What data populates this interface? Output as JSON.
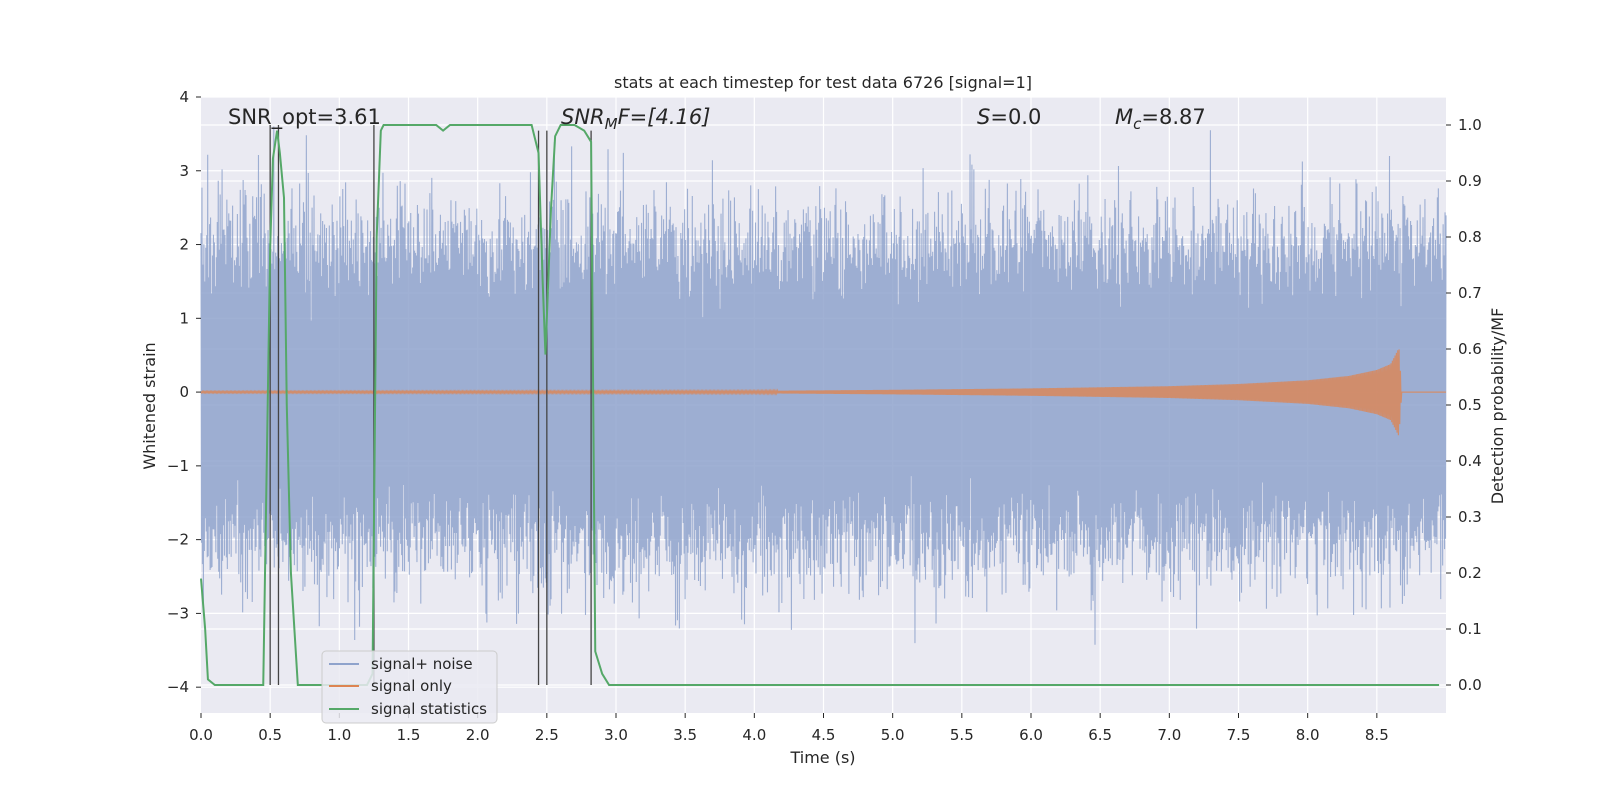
{
  "chart_data": {
    "type": "line",
    "title": "stats at each timestep for test data 6726 [signal=1]",
    "xlabel": "Time (s)",
    "ylabel": "Whitened strain",
    "y2label": "Detection probability/MF",
    "xlim": [
      0.0,
      9.0
    ],
    "ylim": [
      -4.35,
      4.0
    ],
    "y2lim": [
      -0.05,
      1.05
    ],
    "xticks": [
      0.0,
      0.5,
      1.0,
      1.5,
      2.0,
      2.5,
      3.0,
      3.5,
      4.0,
      4.5,
      5.0,
      5.5,
      6.0,
      6.5,
      7.0,
      7.5,
      8.0,
      8.5
    ],
    "xtick_labels": [
      "0.0",
      "0.5",
      "1.0",
      "1.5",
      "2.0",
      "2.5",
      "3.0",
      "3.5",
      "4.0",
      "4.5",
      "5.0",
      "5.5",
      "6.0",
      "6.5",
      "7.0",
      "7.5",
      "8.0",
      "8.5"
    ],
    "yticks": [
      4,
      3,
      2,
      1,
      0,
      -1,
      -2,
      -3,
      -4
    ],
    "ytick_labels": [
      "4",
      "3",
      "2",
      "1",
      "0",
      "−1",
      "−2",
      "−3",
      "−4"
    ],
    "y2ticks": [
      1.0,
      0.9,
      0.8,
      0.7,
      0.6,
      0.5,
      0.4,
      0.3,
      0.2,
      0.1,
      0.0
    ],
    "y2tick_labels": [
      "1.0",
      "0.9",
      "0.8",
      "0.7",
      "0.6",
      "0.5",
      "0.4",
      "0.3",
      "0.2",
      "0.1",
      "0.0"
    ],
    "grid": true,
    "legend_position": "bottom-left",
    "annotations": {
      "snr_opt": "SNR_opt=3.61",
      "snr_mf_name": "SNR",
      "snr_mf_sub": "M",
      "snr_mf_rest": "F=[4.16]",
      "s_name": "S",
      "s_rest": "=0.0",
      "mc_name": "M",
      "mc_sub": "c",
      "mc_rest": "=8.87"
    },
    "series": [
      {
        "name": "signal+ noise",
        "color": "#8fa3cc",
        "axis": "left",
        "duration": 9.0,
        "typical_amplitude": 1.9,
        "peak_amplitude": 3.6
      },
      {
        "name": "signal only",
        "color": "#dd8452",
        "axis": "left",
        "duration": 8.68,
        "envelope_t": [
          0.0,
          4.0,
          5.0,
          6.0,
          7.0,
          7.5,
          8.0,
          8.3,
          8.5,
          8.6,
          8.66,
          8.68
        ],
        "envelope_a": [
          0.01,
          0.015,
          0.03,
          0.05,
          0.08,
          0.11,
          0.16,
          0.22,
          0.3,
          0.38,
          0.6,
          0.0
        ]
      },
      {
        "name": "signal statistics",
        "color": "#55a868",
        "axis": "right",
        "x": [
          0.0,
          0.03,
          0.05,
          0.1,
          0.15,
          0.2,
          0.3,
          0.4,
          0.45,
          0.5,
          0.52,
          0.55,
          0.57,
          0.6,
          0.62,
          0.65,
          0.7,
          0.8,
          1.0,
          1.2,
          1.24,
          1.27,
          1.3,
          1.32,
          1.5,
          1.7,
          1.75,
          1.8,
          2.0,
          2.2,
          2.39,
          2.44,
          2.47,
          2.49,
          2.53,
          2.56,
          2.6,
          2.7,
          2.77,
          2.82,
          2.85,
          2.9,
          2.95,
          3.0,
          4.0,
          6.0,
          8.0,
          8.95
        ],
        "y": [
          0.19,
          0.1,
          0.01,
          0.0,
          0.0,
          0.0,
          0.0,
          0.0,
          0.0,
          0.78,
          0.94,
          0.99,
          0.95,
          0.87,
          0.5,
          0.2,
          0.0,
          0.0,
          0.0,
          0.0,
          0.02,
          0.8,
          0.99,
          1.0,
          1.0,
          1.0,
          0.99,
          1.0,
          1.0,
          1.0,
          1.0,
          0.95,
          0.72,
          0.59,
          0.85,
          0.98,
          1.0,
          1.0,
          0.99,
          0.97,
          0.06,
          0.02,
          0.0,
          0.0,
          0.0,
          0.0,
          0.0,
          0.0
        ]
      }
    ],
    "vertical_markers": [
      {
        "x": 0.5,
        "y_top": 1.0
      },
      {
        "x": 0.56,
        "y_top": 1.0
      },
      {
        "x": 1.25,
        "y_top": 1.0
      },
      {
        "x": 2.44,
        "y_top": 0.99
      },
      {
        "x": 2.5,
        "y_top": 0.99
      },
      {
        "x": 2.82,
        "y_top": 0.99
      }
    ]
  }
}
